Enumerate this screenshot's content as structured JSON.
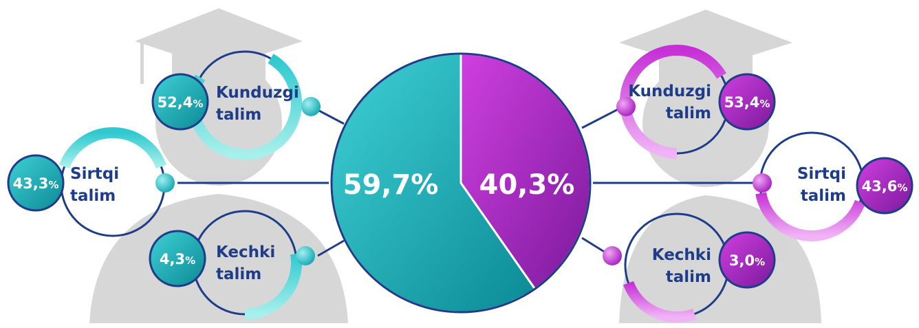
{
  "chart_data": {
    "type": "pie",
    "title": "",
    "slices": [
      {
        "label": "",
        "value": 59.7,
        "display": "59,7%",
        "color": "#15a9b3"
      },
      {
        "label": "",
        "value": 40.3,
        "display": "40,3%",
        "color": "#a91fc0"
      }
    ],
    "groups": [
      {
        "side": "left",
        "color": "#15a9b3",
        "items": [
          {
            "label_line1": "Kunduzgi",
            "label_line2": "talim",
            "value": 52.4,
            "number": "52,4",
            "unit": "%"
          },
          {
            "label_line1": "Sirtqi",
            "label_line2": "talim",
            "value": 43.3,
            "number": "43,3",
            "unit": "%"
          },
          {
            "label_line1": "Kechki",
            "label_line2": "talim",
            "value": 4.3,
            "number": "4,3",
            "unit": "%"
          }
        ]
      },
      {
        "side": "right",
        "color": "#a91fc0",
        "items": [
          {
            "label_line1": "Kunduzgi",
            "label_line2": "talim",
            "value": 53.4,
            "number": "53,4",
            "unit": "%"
          },
          {
            "label_line1": "Sirtqi",
            "label_line2": "talim",
            "value": 43.6,
            "number": "43,6",
            "unit": "%"
          },
          {
            "label_line1": "Kechki",
            "label_line2": "talim",
            "value": 3.0,
            "number": "3,0",
            "unit": "%"
          }
        ]
      }
    ]
  }
}
